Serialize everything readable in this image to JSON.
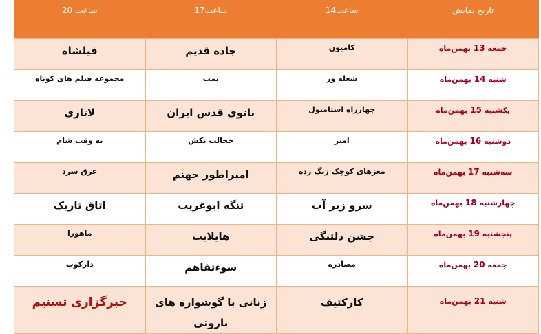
{
  "header": [
    "تاریخ نمایش",
    "ساعت14",
    "ساعت17",
    "ساعت 20"
  ],
  "rows": [
    {
      "day": "جمعه",
      "num": "13",
      "month": "بهمن‌ماه",
      "c14": "کامیون",
      "c17": "جاده قدیم",
      "c20": "فیلشاه"
    },
    {
      "day": "شنبه",
      "num": "14",
      "month": "بهمن‌ماه",
      "c14": "شعله ور",
      "c17": "بمب",
      "c20": "مجموعه فیلم های کوتاه"
    },
    {
      "day": "یکشنبه",
      "num": "15",
      "month": "بهمن‌ماه",
      "c14": "چهارراه استامبول",
      "c17": "بانوی قدس ایران",
      "c20": "لاتاری"
    },
    {
      "day": "دوشنبه",
      "num": "16",
      "month": "بهمن‌ماه",
      "c14": "امیر",
      "c17": "خجالت نکش",
      "c20": "به وقت شام"
    },
    {
      "day": "سه‌شنبه",
      "num": "17",
      "month": "بهمن‌ماه",
      "c14": "مغزهای کوچک زنگ زده",
      "c17": "امپراطور جهنم",
      "c20": "عرق سرد"
    },
    {
      "day": "چهارشنبه",
      "num": "18",
      "month": "بهمن‌ماه",
      "c14": "سرو زیر آب",
      "c17": "تنگه ابوغریب",
      "c20": "اتاق تاریک"
    },
    {
      "day": "پنجشنبه",
      "num": "19",
      "month": "بهمن‌ماه",
      "c14": "جشن دلتنگی",
      "c17": "هایلایت",
      "c20": "ماهورا"
    },
    {
      "day": "جمعه",
      "num": "20",
      "month": "بهمن‌ماه",
      "c14": "مصادره",
      "c17": "سوءتفاهم",
      "c20": "دارکوب"
    },
    {
      "day": "شنبه",
      "num": "21",
      "month": "بهمن‌ماه",
      "c14": "کارکثیف",
      "c17": "زنانی با گوشواره های باروتی",
      "c20": "خبرگزاری تسنیم"
    }
  ],
  "big": [
    [
      false,
      true,
      true
    ],
    [
      false,
      false,
      false
    ],
    [
      false,
      true,
      true
    ],
    [
      false,
      false,
      false
    ],
    [
      false,
      true,
      false
    ],
    [
      true,
      true,
      true
    ],
    [
      true,
      true,
      false
    ],
    [
      false,
      true,
      false
    ],
    [
      true,
      true,
      true
    ]
  ],
  "colors": {
    "header": "#ed7d31",
    "row_alt": "#fbe4d5",
    "date": "#a50021",
    "watermark": "#b00f0f"
  }
}
